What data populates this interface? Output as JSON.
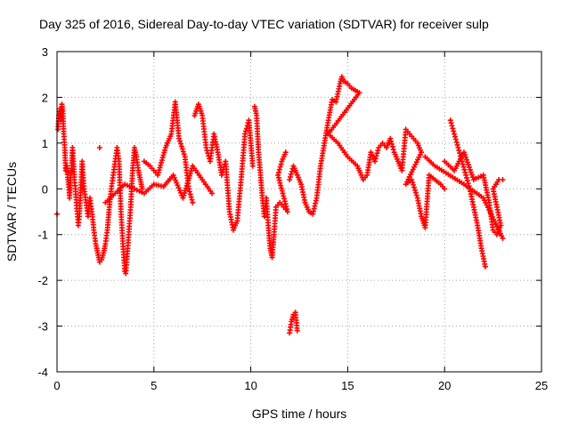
{
  "chart_data": {
    "type": "scatter",
    "title": "Day 325 of 2016, Sidereal Day-to-day VTEC variation (SDTVAR) for receiver sulp",
    "xlabel": "GPS time / hours",
    "ylabel": "SDTVAR / TECUs",
    "xlim": [
      0,
      25
    ],
    "ylim": [
      -4,
      3
    ],
    "xticks": [
      "0",
      "5",
      "10",
      "15",
      "20",
      "25"
    ],
    "yticks": [
      "-4",
      "-3",
      "-2",
      "-1",
      "0",
      "1",
      "2",
      "3"
    ],
    "grid": true,
    "marker": "plus",
    "series": [
      {
        "name": "SDTVAR",
        "color": "#ff0000",
        "points": [
          [
            0.0,
            -0.55
          ],
          [
            0.05,
            1.3
          ],
          [
            0.1,
            1.6
          ],
          [
            0.15,
            1.75
          ],
          [
            0.2,
            1.5
          ],
          [
            0.25,
            1.85
          ],
          [
            0.3,
            1.7
          ],
          [
            0.35,
            1.2
          ],
          [
            0.4,
            0.9
          ],
          [
            0.45,
            0.4
          ],
          [
            0.5,
            0.5
          ],
          [
            0.55,
            0.25
          ],
          [
            0.6,
            0.1
          ],
          [
            0.65,
            -0.2
          ],
          [
            0.7,
            0.3
          ],
          [
            0.75,
            0.45
          ],
          [
            0.8,
            0.9
          ],
          [
            0.85,
            0.6
          ],
          [
            0.9,
            0.2
          ],
          [
            0.95,
            0.0
          ],
          [
            1.0,
            -0.3
          ],
          [
            1.05,
            -0.55
          ],
          [
            1.1,
            -0.8
          ],
          [
            1.15,
            -0.6
          ],
          [
            1.2,
            -0.2
          ],
          [
            1.25,
            0.2
          ],
          [
            1.3,
            0.6
          ],
          [
            1.35,
            0.3
          ],
          [
            1.4,
            0.0
          ],
          [
            1.5,
            -0.3
          ],
          [
            1.6,
            -0.6
          ],
          [
            1.7,
            -0.2
          ],
          [
            1.8,
            -0.5
          ],
          [
            1.9,
            -0.9
          ],
          [
            2.0,
            -1.2
          ],
          [
            2.1,
            -1.4
          ],
          [
            2.2,
            -1.6
          ],
          [
            2.3,
            -1.55
          ],
          [
            2.4,
            -1.4
          ],
          [
            2.5,
            -1.2
          ],
          [
            2.6,
            -0.9
          ],
          [
            2.7,
            -0.4
          ],
          [
            2.8,
            0.0
          ],
          [
            2.9,
            0.3
          ],
          [
            3.0,
            0.6
          ],
          [
            3.1,
            0.9
          ],
          [
            3.2,
            0.6
          ],
          [
            3.3,
            -0.5
          ],
          [
            3.4,
            -1.2
          ],
          [
            3.5,
            -1.8
          ],
          [
            3.55,
            -1.85
          ],
          [
            3.6,
            -1.6
          ],
          [
            3.7,
            -1.0
          ],
          [
            3.8,
            -0.4
          ],
          [
            3.9,
            0.4
          ],
          [
            4.0,
            0.9
          ],
          [
            4.1,
            0.7
          ],
          [
            4.2,
            0.4
          ],
          [
            4.3,
            0.2
          ],
          [
            4.4,
            0.0
          ],
          [
            2.2,
            0.9
          ],
          [
            2.5,
            -0.3
          ],
          [
            3.0,
            -0.1
          ],
          [
            3.5,
            0.1
          ],
          [
            4.0,
            0.0
          ],
          [
            4.5,
            -0.1
          ],
          [
            5.0,
            0.1
          ],
          [
            5.5,
            0.05
          ],
          [
            6.0,
            0.3
          ],
          [
            6.5,
            -0.2
          ],
          [
            7.0,
            0.5
          ],
          [
            7.5,
            0.2
          ],
          [
            8.0,
            -0.1
          ],
          [
            4.5,
            0.6
          ],
          [
            4.8,
            0.5
          ],
          [
            5.2,
            0.3
          ],
          [
            5.6,
            0.9
          ],
          [
            5.9,
            1.2
          ],
          [
            6.1,
            1.9
          ],
          [
            6.3,
            1.1
          ],
          [
            6.6,
            0.7
          ],
          [
            6.8,
            0.0
          ],
          [
            7.0,
            -0.3
          ],
          [
            7.1,
            1.6
          ],
          [
            7.3,
            1.85
          ],
          [
            7.5,
            1.6
          ],
          [
            7.7,
            0.9
          ],
          [
            7.9,
            0.6
          ],
          [
            8.1,
            1.2
          ],
          [
            8.3,
            0.8
          ],
          [
            8.5,
            0.3
          ],
          [
            8.7,
            0.6
          ],
          [
            8.9,
            -0.5
          ],
          [
            9.1,
            -0.9
          ],
          [
            9.3,
            -0.7
          ],
          [
            9.5,
            0.2
          ],
          [
            9.7,
            1.2
          ],
          [
            9.9,
            1.5
          ],
          [
            10.0,
            1.0
          ],
          [
            10.1,
            0.5
          ],
          [
            10.2,
            1.8
          ],
          [
            10.3,
            1.6
          ],
          [
            10.4,
            0.8
          ],
          [
            10.5,
            0.3
          ],
          [
            10.6,
            -0.2
          ],
          [
            10.7,
            -0.6
          ],
          [
            10.8,
            -0.2
          ],
          [
            10.9,
            -0.8
          ],
          [
            11.0,
            -1.3
          ],
          [
            11.1,
            -1.5
          ],
          [
            11.2,
            -1.0
          ],
          [
            11.3,
            -0.4
          ],
          [
            11.5,
            -0.3
          ],
          [
            11.7,
            -0.4
          ],
          [
            11.9,
            -0.5
          ],
          [
            11.4,
            0.3
          ],
          [
            11.6,
            0.6
          ],
          [
            11.8,
            0.8
          ],
          [
            12.0,
            -3.15
          ],
          [
            12.1,
            -2.9
          ],
          [
            12.2,
            -2.75
          ],
          [
            12.3,
            -2.7
          ],
          [
            12.4,
            -3.1
          ],
          [
            12.0,
            0.2
          ],
          [
            12.2,
            0.5
          ],
          [
            12.4,
            0.3
          ],
          [
            12.6,
            0.1
          ],
          [
            12.8,
            -0.3
          ],
          [
            13.0,
            -0.5
          ],
          [
            13.2,
            -0.55
          ],
          [
            13.4,
            -0.2
          ],
          [
            13.6,
            0.5
          ],
          [
            13.8,
            1.0
          ],
          [
            14.0,
            1.5
          ],
          [
            14.2,
            1.95
          ],
          [
            14.4,
            1.9
          ],
          [
            14.6,
            2.3
          ],
          [
            14.7,
            2.45
          ],
          [
            14.8,
            2.35
          ],
          [
            15.0,
            2.3
          ],
          [
            15.2,
            2.2
          ],
          [
            15.4,
            2.15
          ],
          [
            15.6,
            2.1
          ],
          [
            14.0,
            1.2
          ],
          [
            14.5,
            1.0
          ],
          [
            15.0,
            0.7
          ],
          [
            15.5,
            0.5
          ],
          [
            15.8,
            0.2
          ],
          [
            16.0,
            0.3
          ],
          [
            16.2,
            0.8
          ],
          [
            16.4,
            0.6
          ],
          [
            16.6,
            0.9
          ],
          [
            16.8,
            1.0
          ],
          [
            17.0,
            0.9
          ],
          [
            17.2,
            1.1
          ],
          [
            17.4,
            0.8
          ],
          [
            17.6,
            0.6
          ],
          [
            17.8,
            0.4
          ],
          [
            18.0,
            1.3
          ],
          [
            18.2,
            1.2
          ],
          [
            18.4,
            1.1
          ],
          [
            18.6,
            1.0
          ],
          [
            18.8,
            0.8
          ],
          [
            18.0,
            0.1
          ],
          [
            18.3,
            0.2
          ],
          [
            18.6,
            -0.2
          ],
          [
            18.8,
            -0.6
          ],
          [
            19.0,
            -0.85
          ],
          [
            19.2,
            0.3
          ],
          [
            19.5,
            0.2
          ],
          [
            19.8,
            0.1
          ],
          [
            20.0,
            0.0
          ],
          [
            20.3,
            1.5
          ],
          [
            20.5,
            1.2
          ],
          [
            20.7,
            0.9
          ],
          [
            20.9,
            0.6
          ],
          [
            21.1,
            0.3
          ],
          [
            21.3,
            0.0
          ],
          [
            21.5,
            -0.4
          ],
          [
            21.7,
            -0.8
          ],
          [
            21.9,
            -1.3
          ],
          [
            22.1,
            -1.7
          ],
          [
            20.0,
            0.6
          ],
          [
            20.5,
            0.4
          ],
          [
            21.0,
            0.8
          ],
          [
            21.5,
            0.2
          ],
          [
            22.0,
            0.3
          ],
          [
            22.3,
            -0.3
          ],
          [
            22.5,
            -0.9
          ],
          [
            22.7,
            -1.0
          ],
          [
            22.9,
            -0.8
          ],
          [
            22.5,
            0.0
          ],
          [
            22.8,
            0.2
          ],
          [
            23.0,
            0.2
          ],
          [
            23.0,
            -1.08
          ],
          [
            22.0,
            -0.2
          ],
          [
            21.0,
            0.1
          ],
          [
            19.5,
            0.5
          ],
          [
            19.0,
            0.7
          ]
        ]
      }
    ]
  }
}
